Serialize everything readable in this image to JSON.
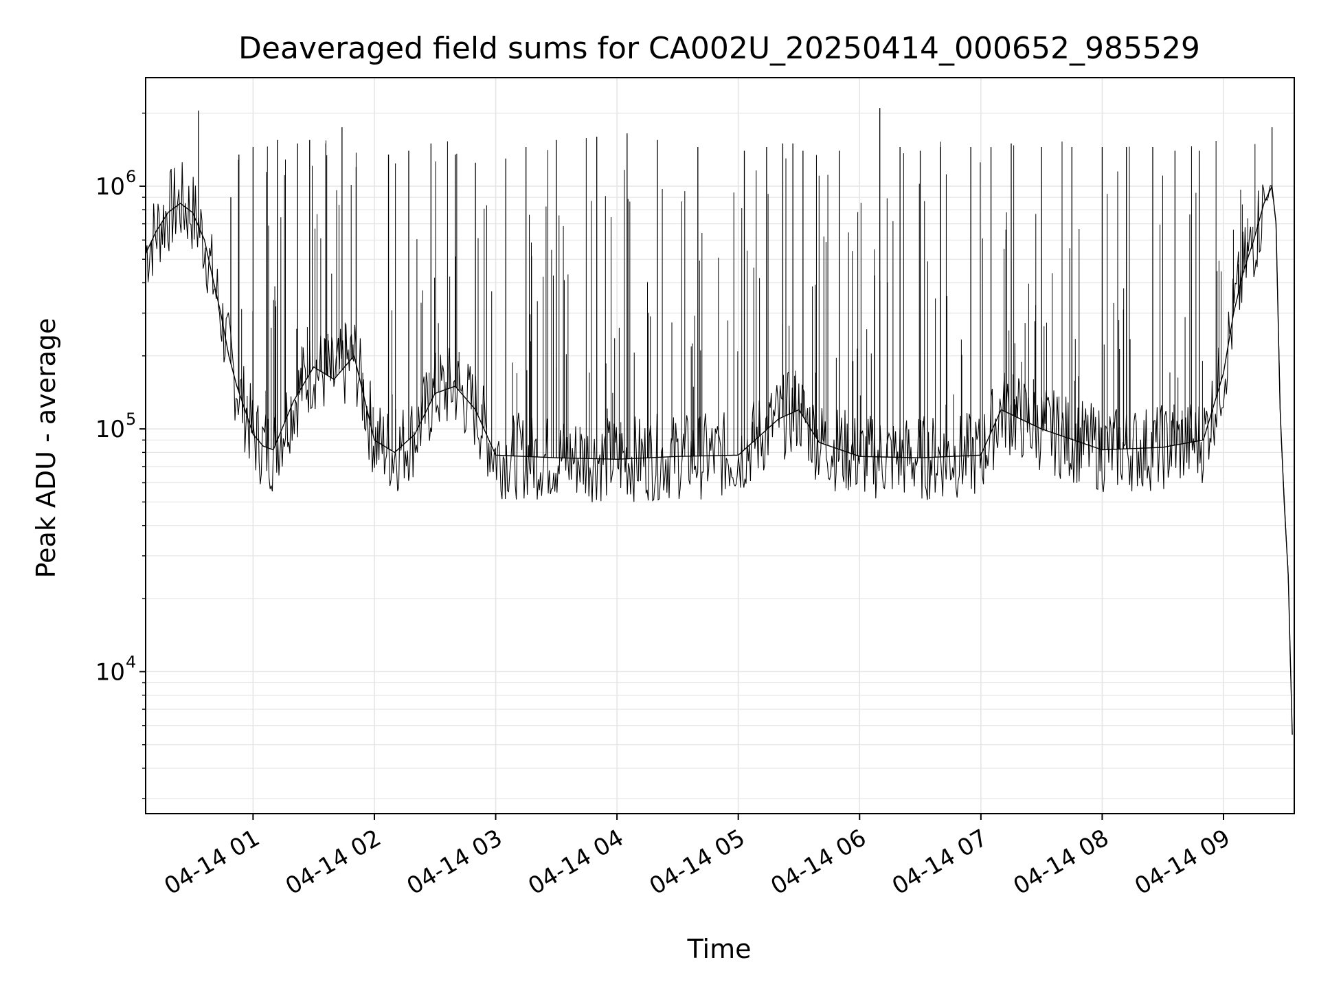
{
  "chart_data": {
    "type": "line",
    "title": "Deaveraged field sums for CA002U_20250414_000652_985529",
    "xlabel": "Time",
    "ylabel": "Peak ADU - average",
    "yscale": "log",
    "xlim": [
      "2025-04-14 00:06:52",
      "2025-04-14 09:35:00"
    ],
    "ylim": [
      2600,
      2800000
    ],
    "grid": true,
    "line_color": "#000000",
    "grid_color": "#e5e5e5",
    "x_ticks": [
      {
        "value": "2025-04-14 01:00",
        "label": "04-14 01"
      },
      {
        "value": "2025-04-14 02:00",
        "label": "04-14 02"
      },
      {
        "value": "2025-04-14 03:00",
        "label": "04-14 03"
      },
      {
        "value": "2025-04-14 04:00",
        "label": "04-14 04"
      },
      {
        "value": "2025-04-14 05:00",
        "label": "04-14 05"
      },
      {
        "value": "2025-04-14 06:00",
        "label": "04-14 06"
      },
      {
        "value": "2025-04-14 07:00",
        "label": "04-14 07"
      },
      {
        "value": "2025-04-14 08:00",
        "label": "04-14 08"
      },
      {
        "value": "2025-04-14 09:00",
        "label": "04-14 09"
      }
    ],
    "y_ticks": [
      {
        "value": 10000,
        "base": "10",
        "exp": "4"
      },
      {
        "value": 100000,
        "base": "10",
        "exp": "5"
      },
      {
        "value": 1000000,
        "base": "10",
        "exp": "6"
      }
    ],
    "series": [
      {
        "x": [
          "2025-04-14 00:07",
          "2025-04-14 00:12",
          "2025-04-14 00:18",
          "2025-04-14 00:24",
          "2025-04-14 00:30",
          "2025-04-14 00:36",
          "2025-04-14 00:40",
          "2025-04-14 00:44",
          "2025-04-14 00:48",
          "2025-04-14 00:52",
          "2025-04-14 00:56",
          "2025-04-14 01:00",
          "2025-04-14 01:05",
          "2025-04-14 01:10",
          "2025-04-14 01:20",
          "2025-04-14 01:30",
          "2025-04-14 01:40",
          "2025-04-14 01:50",
          "2025-04-14 02:00",
          "2025-04-14 02:10",
          "2025-04-14 02:20",
          "2025-04-14 02:30",
          "2025-04-14 02:40",
          "2025-04-14 02:50",
          "2025-04-14 03:00",
          "2025-04-14 03:30",
          "2025-04-14 04:00",
          "2025-04-14 04:30",
          "2025-04-14 05:00",
          "2025-04-14 05:20",
          "2025-04-14 05:30",
          "2025-04-14 05:40",
          "2025-04-14 06:00",
          "2025-04-14 06:30",
          "2025-04-14 07:00",
          "2025-04-14 07:10",
          "2025-04-14 07:30",
          "2025-04-14 08:00",
          "2025-04-14 08:30",
          "2025-04-14 08:50",
          "2025-04-14 09:00",
          "2025-04-14 09:05",
          "2025-04-14 09:10",
          "2025-04-14 09:15",
          "2025-04-14 09:20",
          "2025-04-14 09:24",
          "2025-04-14 09:26",
          "2025-04-14 09:28",
          "2025-04-14 09:30",
          "2025-04-14 09:32",
          "2025-04-14 09:34"
        ],
        "y": [
          530000,
          650000,
          780000,
          850000,
          780000,
          600000,
          420000,
          300000,
          200000,
          150000,
          120000,
          95000,
          85000,
          82000,
          130000,
          180000,
          160000,
          200000,
          90000,
          80000,
          95000,
          140000,
          150000,
          120000,
          78000,
          76000,
          75000,
          77000,
          78000,
          110000,
          120000,
          88000,
          77000,
          76000,
          78000,
          120000,
          100000,
          82000,
          84000,
          90000,
          170000,
          300000,
          450000,
          600000,
          850000,
          1000000,
          700000,
          120000,
          50000,
          25000,
          5500
        ]
      }
    ],
    "spikes": {
      "x": [
        "2025-04-14 00:33",
        "2025-04-14 00:49",
        "2025-04-14 00:53",
        "2025-04-14 01:00",
        "2025-04-14 01:12",
        "2025-04-14 01:22",
        "2025-04-14 01:28",
        "2025-04-14 01:36",
        "2025-04-14 01:44",
        "2025-04-14 01:51",
        "2025-04-14 02:07",
        "2025-04-14 02:17",
        "2025-04-14 02:28",
        "2025-04-14 02:40",
        "2025-04-14 02:50",
        "2025-04-14 03:05",
        "2025-04-14 03:15",
        "2025-04-14 03:30",
        "2025-04-14 03:50",
        "2025-04-14 04:05",
        "2025-04-14 04:20",
        "2025-04-14 04:40",
        "2025-04-14 05:03",
        "2025-04-14 05:14",
        "2025-04-14 05:22",
        "2025-04-14 05:27",
        "2025-04-14 05:32",
        "2025-04-14 05:50",
        "2025-04-14 06:10",
        "2025-04-14 06:20",
        "2025-04-14 06:30",
        "2025-04-14 06:40",
        "2025-04-14 06:55",
        "2025-04-14 07:05",
        "2025-04-14 07:15",
        "2025-04-14 07:30",
        "2025-04-14 07:45",
        "2025-04-14 08:00",
        "2025-04-14 08:12",
        "2025-04-14 08:25",
        "2025-04-14 08:36",
        "2025-04-14 08:48",
        "2025-04-14 09:24"
      ],
      "y": [
        2050000,
        900000,
        1350000,
        1450000,
        1550000,
        1500000,
        1550000,
        1500000,
        1750000,
        1200000,
        1350000,
        1400000,
        1500000,
        1350000,
        1250000,
        1300000,
        1450000,
        1550000,
        1600000,
        1650000,
        1550000,
        1450000,
        1400000,
        1450000,
        1500000,
        1500000,
        1400000,
        1400000,
        2100000,
        1450000,
        1400000,
        1450000,
        1450000,
        1450000,
        1500000,
        1450000,
        1450000,
        1450000,
        1450000,
        1450000,
        1400000,
        1400000,
        1750000
      ]
    }
  }
}
